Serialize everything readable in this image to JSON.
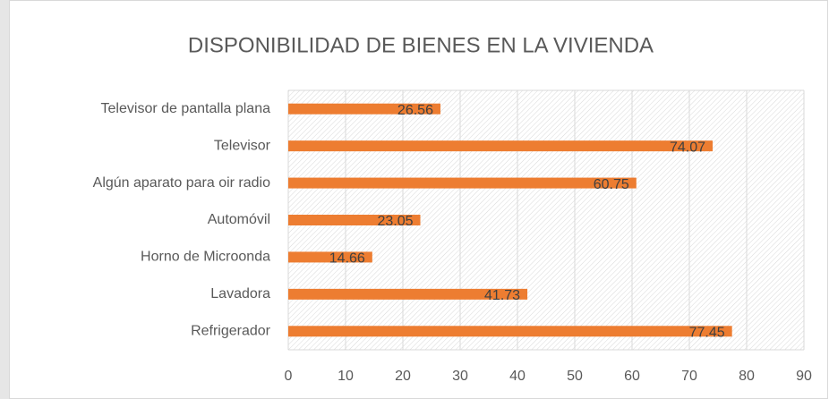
{
  "chart_data": {
    "type": "bar",
    "orientation": "horizontal",
    "title": "DISPONIBILIDAD DE BIENES EN LA VIVIENDA",
    "categories": [
      "Televisor de pantalla plana",
      "Televisor",
      "Algún aparato para oir radio",
      "Automóvil",
      "Horno de Microonda",
      "Lavadora",
      "Refrigerador"
    ],
    "values": [
      26.56,
      74.07,
      60.75,
      23.05,
      14.66,
      41.73,
      77.45
    ],
    "color": "#ed7d31",
    "xlim": [
      0,
      90
    ],
    "xticks": [
      0,
      10,
      20,
      30,
      40,
      50,
      60,
      70,
      80,
      90
    ],
    "grid": true
  }
}
